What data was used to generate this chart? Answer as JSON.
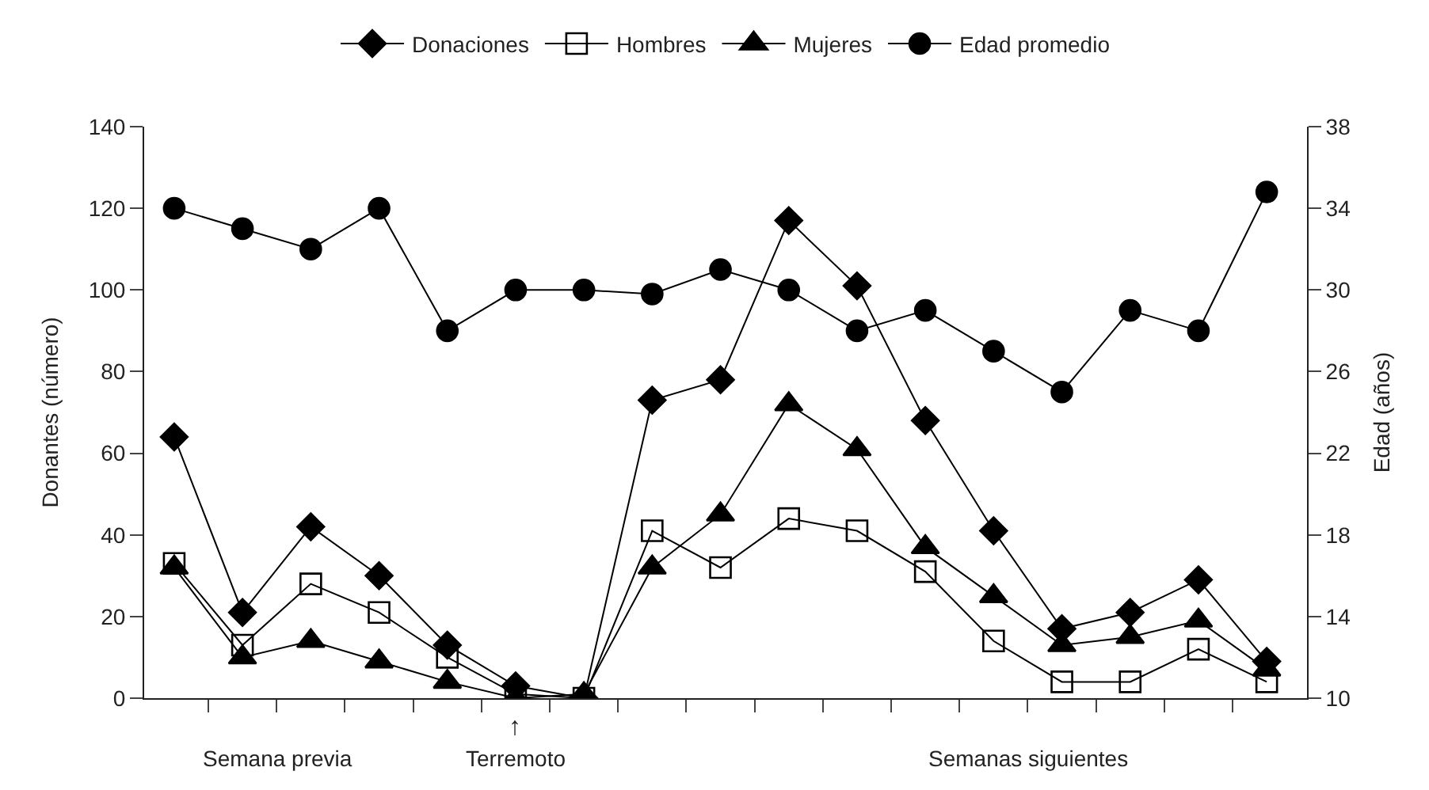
{
  "chart_data": {
    "type": "line",
    "ylabel": "Donantes (número)",
    "y2label": "Edad (años)",
    "categories": [
      null,
      null,
      null,
      null,
      null,
      null,
      null,
      null,
      null,
      null,
      null,
      null,
      null,
      null,
      null,
      null,
      null
    ],
    "series": [
      {
        "name": "Donaciones",
        "color": "#000000",
        "marker": "diamond",
        "values": [
          64,
          21,
          42,
          30,
          13,
          3,
          0,
          73,
          78,
          117,
          101,
          68,
          41,
          17,
          21,
          29,
          9
        ]
      },
      {
        "name": "Hombres",
        "color": "#000000",
        "marker": "square",
        "values": [
          33,
          13,
          28,
          21,
          10,
          1,
          0,
          41,
          32,
          44,
          41,
          31,
          14,
          4,
          4,
          12,
          4
        ]
      },
      {
        "name": "Mujeres",
        "color": "#000000",
        "marker": "triangle",
        "values": [
          32,
          10,
          14,
          9,
          4,
          0,
          1,
          32,
          45,
          72,
          61,
          37,
          25,
          13,
          15,
          19,
          7
        ]
      },
      {
        "name": "Edad promedio",
        "color": "#000000",
        "marker": "circle",
        "axis": "y2",
        "values": [
          34,
          33,
          32,
          34,
          28,
          30,
          30,
          29.8,
          31,
          30,
          28,
          29,
          27,
          25,
          29,
          28,
          34.8
        ]
      }
    ],
    "ylim": [
      0,
      140
    ],
    "yticks": [
      0,
      20,
      40,
      60,
      80,
      100,
      120,
      140
    ],
    "y2lim": [
      10,
      38
    ],
    "y2ticks": [
      10,
      14,
      18,
      22,
      26,
      30,
      34,
      38
    ],
    "annotations": [
      "Semana previa",
      "↑",
      "Terremoto",
      "Semanas siguientes"
    ],
    "legend": "top"
  }
}
